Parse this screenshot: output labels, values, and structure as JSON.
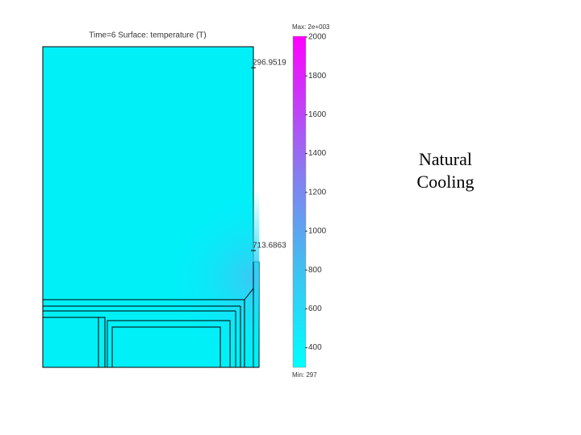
{
  "plot": {
    "title": "Time=6  Surface: temperature (T)",
    "annotations": [
      "296.9519",
      "713.6863"
    ]
  },
  "colorbar": {
    "max_label": "Max: 2e+003",
    "min_label": "Min: 297",
    "ticks": [
      2000,
      1800,
      1600,
      1400,
      1200,
      1000,
      800,
      600,
      400
    ]
  },
  "caption": {
    "lines": [
      "Natural",
      "Cooling"
    ]
  }
}
